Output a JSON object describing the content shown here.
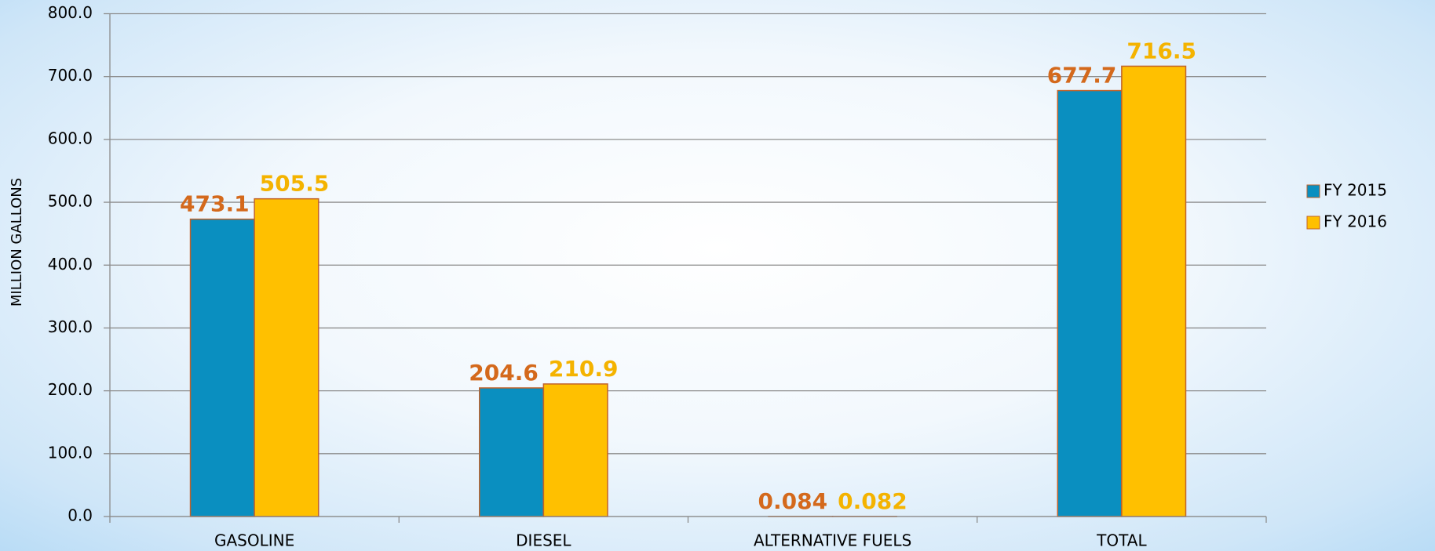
{
  "chart_data": {
    "type": "bar",
    "y_label": "MILLION GALLONS",
    "categories": [
      "GASOLINE",
      "DIESEL",
      "ALTERNATIVE FUELS",
      "TOTAL"
    ],
    "series": [
      {
        "name": "FY 2015",
        "color": "#0a8fc0",
        "label_color": "#d4691c",
        "values": [
          473.1,
          204.6,
          0.084,
          677.7
        ]
      },
      {
        "name": "FY 2016",
        "color": "#ffc000",
        "label_color": "#f4b300",
        "values": [
          505.5,
          210.9,
          0.082,
          716.5
        ]
      }
    ],
    "ylim": [
      0,
      800
    ],
    "yticks": [
      {
        "value": 0,
        "label": "0.0"
      },
      {
        "value": 100,
        "label": "100.0"
      },
      {
        "value": 200,
        "label": "200.0"
      },
      {
        "value": 300,
        "label": "300.0"
      },
      {
        "value": 400,
        "label": "400.0"
      },
      {
        "value": 500,
        "label": "500.0"
      },
      {
        "value": 600,
        "label": "600.0"
      },
      {
        "value": 700,
        "label": "700.0"
      },
      {
        "value": 800,
        "label": "800.0"
      }
    ],
    "grid": true,
    "legend": "right"
  }
}
